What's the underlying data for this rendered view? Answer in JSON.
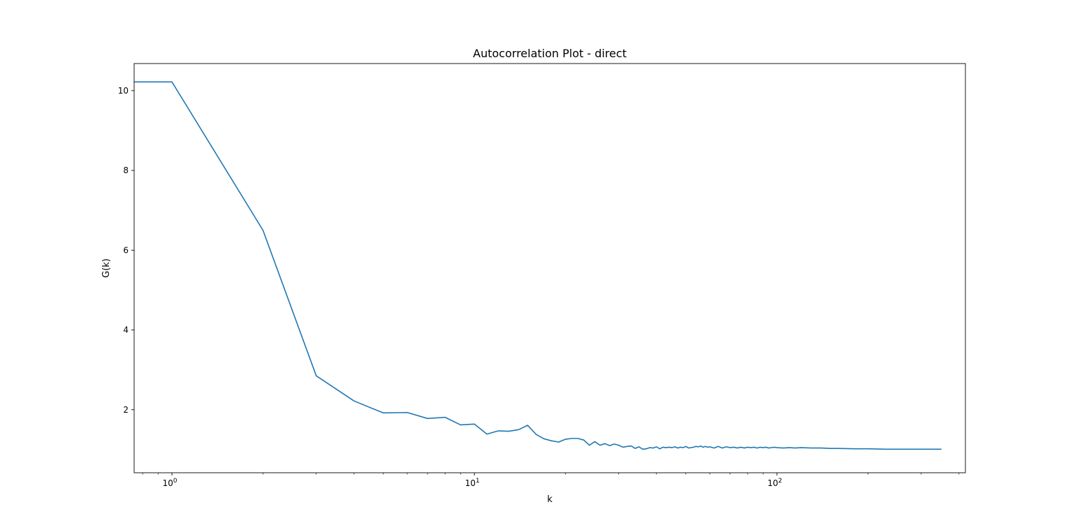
{
  "chart_data": {
    "type": "line",
    "title": "Autocorrelation Plot - direct",
    "xlabel": "k",
    "ylabel": "G(k)",
    "xscale": "log",
    "xlim": [
      0.75,
      420
    ],
    "ylim": [
      0.42,
      10.68
    ],
    "grid": false,
    "legend": "none",
    "x_ticks": [
      {
        "value": 1,
        "base": "10",
        "exp": "0"
      },
      {
        "value": 10,
        "base": "10",
        "exp": "1"
      },
      {
        "value": 100,
        "base": "10",
        "exp": "2"
      }
    ],
    "y_ticks": [
      {
        "value": 2,
        "label": "2"
      },
      {
        "value": 4,
        "label": "4"
      },
      {
        "value": 6,
        "label": "6"
      },
      {
        "value": 8,
        "label": "8"
      },
      {
        "value": 10,
        "label": "10"
      }
    ],
    "series": [
      {
        "color": "#1f77b4",
        "points": [
          [
            0.75,
            10.22
          ],
          [
            1,
            10.22
          ],
          [
            2,
            6.5
          ],
          [
            3,
            2.85
          ],
          [
            4,
            2.22
          ],
          [
            5,
            1.92
          ],
          [
            6,
            1.93
          ],
          [
            7,
            1.78
          ],
          [
            8,
            1.81
          ],
          [
            9,
            1.62
          ],
          [
            10,
            1.64
          ],
          [
            11,
            1.39
          ],
          [
            12,
            1.47
          ],
          [
            13,
            1.46
          ],
          [
            14,
            1.5
          ],
          [
            15,
            1.61
          ],
          [
            16,
            1.38
          ],
          [
            17,
            1.27
          ],
          [
            18,
            1.22
          ],
          [
            19,
            1.19
          ],
          [
            20,
            1.26
          ],
          [
            21,
            1.28
          ],
          [
            22,
            1.28
          ],
          [
            23,
            1.24
          ],
          [
            24,
            1.11
          ],
          [
            25,
            1.2
          ],
          [
            26,
            1.11
          ],
          [
            27,
            1.15
          ],
          [
            28,
            1.1
          ],
          [
            29,
            1.14
          ],
          [
            30,
            1.11
          ],
          [
            31,
            1.06
          ],
          [
            32,
            1.08
          ],
          [
            33,
            1.09
          ],
          [
            34,
            1.03
          ],
          [
            35,
            1.07
          ],
          [
            36,
            1.01
          ],
          [
            37,
            1.02
          ],
          [
            38,
            1.05
          ],
          [
            39,
            1.04
          ],
          [
            40,
            1.07
          ],
          [
            41,
            1.02
          ],
          [
            42,
            1.06
          ],
          [
            43,
            1.05
          ],
          [
            44,
            1.06
          ],
          [
            45,
            1.05
          ],
          [
            46,
            1.07
          ],
          [
            47,
            1.04
          ],
          [
            48,
            1.06
          ],
          [
            49,
            1.05
          ],
          [
            50,
            1.08
          ],
          [
            51,
            1.04
          ],
          [
            52,
            1.05
          ],
          [
            53,
            1.06
          ],
          [
            54,
            1.08
          ],
          [
            55,
            1.07
          ],
          [
            56,
            1.09
          ],
          [
            57,
            1.06
          ],
          [
            58,
            1.08
          ],
          [
            59,
            1.06
          ],
          [
            60,
            1.07
          ],
          [
            62,
            1.04
          ],
          [
            64,
            1.08
          ],
          [
            66,
            1.04
          ],
          [
            68,
            1.07
          ],
          [
            70,
            1.05
          ],
          [
            72,
            1.06
          ],
          [
            74,
            1.04
          ],
          [
            76,
            1.06
          ],
          [
            78,
            1.04
          ],
          [
            80,
            1.06
          ],
          [
            82,
            1.05
          ],
          [
            84,
            1.06
          ],
          [
            86,
            1.04
          ],
          [
            88,
            1.06
          ],
          [
            90,
            1.05
          ],
          [
            92,
            1.06
          ],
          [
            94,
            1.04
          ],
          [
            96,
            1.05
          ],
          [
            98,
            1.06
          ],
          [
            100,
            1.05
          ],
          [
            105,
            1.04
          ],
          [
            110,
            1.05
          ],
          [
            115,
            1.04
          ],
          [
            120,
            1.05
          ],
          [
            130,
            1.04
          ],
          [
            140,
            1.04
          ],
          [
            150,
            1.03
          ],
          [
            160,
            1.03
          ],
          [
            180,
            1.02
          ],
          [
            200,
            1.02
          ],
          [
            230,
            1.01
          ],
          [
            260,
            1.01
          ],
          [
            300,
            1.01
          ],
          [
            350,
            1.01
          ]
        ]
      }
    ]
  }
}
